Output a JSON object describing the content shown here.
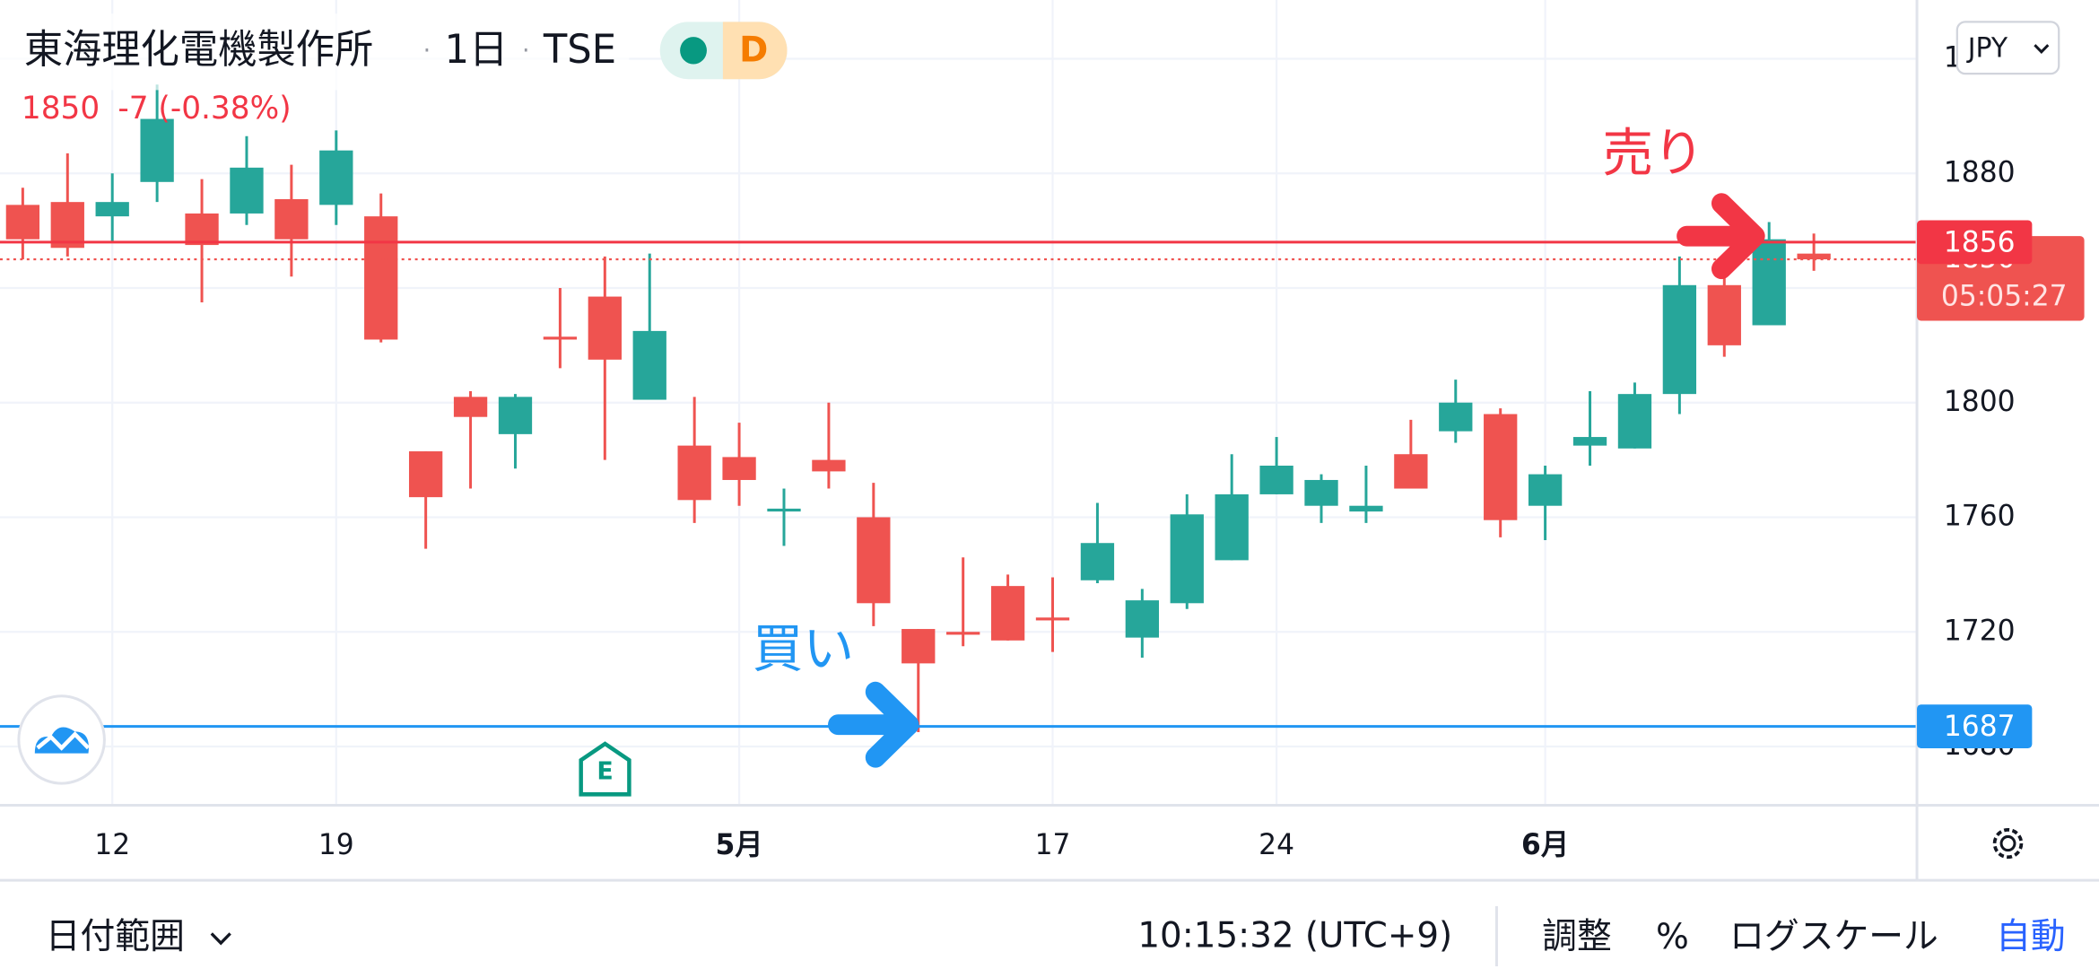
{
  "chart_data": {
    "type": "candlestick",
    "title": "東海理化電機製作所",
    "interval": "1日",
    "exchange": "TSE",
    "status": "D",
    "quote": {
      "price": "1850",
      "change": "-7 (-0.38%)"
    },
    "categories": [
      null,
      null,
      "12",
      null,
      null,
      null,
      null,
      "19",
      null,
      null,
      null,
      null,
      null,
      null,
      null,
      null,
      "5月",
      null,
      null,
      null,
      null,
      null,
      null,
      "17",
      null,
      null,
      null,
      null,
      "24",
      null,
      null,
      null,
      null,
      null,
      "6月",
      null,
      null,
      null,
      null,
      null,
      null
    ],
    "open": [
      1869,
      1870,
      1865,
      1877,
      1866,
      1866,
      1871,
      1869,
      1865,
      1783,
      1802,
      1789,
      1823,
      1837,
      1801,
      1785,
      1781,
      1762,
      1780,
      1760,
      1721,
      1720,
      1736,
      1725,
      1738,
      1718,
      1730,
      1745,
      1768,
      1764,
      1762,
      1782,
      1790,
      1796,
      1764,
      1785,
      1784,
      1803,
      1841,
      1827,
      1852
    ],
    "high": [
      1875,
      1887,
      1880,
      1911,
      1878,
      1893,
      1883,
      1895,
      1873,
      1783,
      1804,
      1803,
      1840,
      1851,
      1852,
      1802,
      1793,
      1770,
      1800,
      1772,
      1721,
      1746,
      1740,
      1739,
      1765,
      1735,
      1768,
      1782,
      1788,
      1775,
      1778,
      1794,
      1808,
      1798,
      1778,
      1804,
      1807,
      1851,
      1850,
      1863,
      1859
    ],
    "low": [
      1850,
      1851,
      1856,
      1870,
      1835,
      1862,
      1844,
      1862,
      1821,
      1749,
      1770,
      1777,
      1812,
      1780,
      1801,
      1758,
      1764,
      1750,
      1770,
      1722,
      1685,
      1715,
      1717,
      1713,
      1737,
      1711,
      1728,
      1745,
      1768,
      1758,
      1758,
      1770,
      1786,
      1753,
      1752,
      1778,
      1784,
      1796,
      1816,
      1827,
      1846
    ],
    "close": [
      1857,
      1854,
      1870,
      1899,
      1855,
      1882,
      1857,
      1888,
      1822,
      1767,
      1795,
      1802,
      1822,
      1815,
      1825,
      1766,
      1773,
      1763,
      1776,
      1730,
      1709,
      1719,
      1717,
      1724,
      1751,
      1731,
      1761,
      1768,
      1778,
      1773,
      1764,
      1770,
      1800,
      1759,
      1775,
      1788,
      1803,
      1841,
      1820,
      1857,
      1850
    ],
    "up_color": "#26a69a",
    "down_color": "#ef5350",
    "ylim": [
      1659.5,
      1940.5
    ],
    "yticks": [
      1680,
      1720,
      1760,
      1800,
      1840,
      1880,
      1920
    ],
    "grid": true,
    "price_lines": [
      {
        "value": 1856,
        "color": "#f23645"
      },
      {
        "value": 1687,
        "color": "#2196f3"
      }
    ],
    "last_price": {
      "value": 1850,
      "countdown": "05:05:27",
      "color": "#ef5350"
    },
    "annotations": [
      {
        "text": "売り",
        "color": "#f23645"
      },
      {
        "text": "買い",
        "color": "#2196f3"
      }
    ],
    "earnings_marker": "E"
  },
  "ui": {
    "currency": "JPY",
    "date_range": "日付範囲",
    "clock": "10:15:32 (UTC+9)",
    "adjust": "調整",
    "percent": "%",
    "log_scale": "ログスケール",
    "auto": "自動"
  }
}
